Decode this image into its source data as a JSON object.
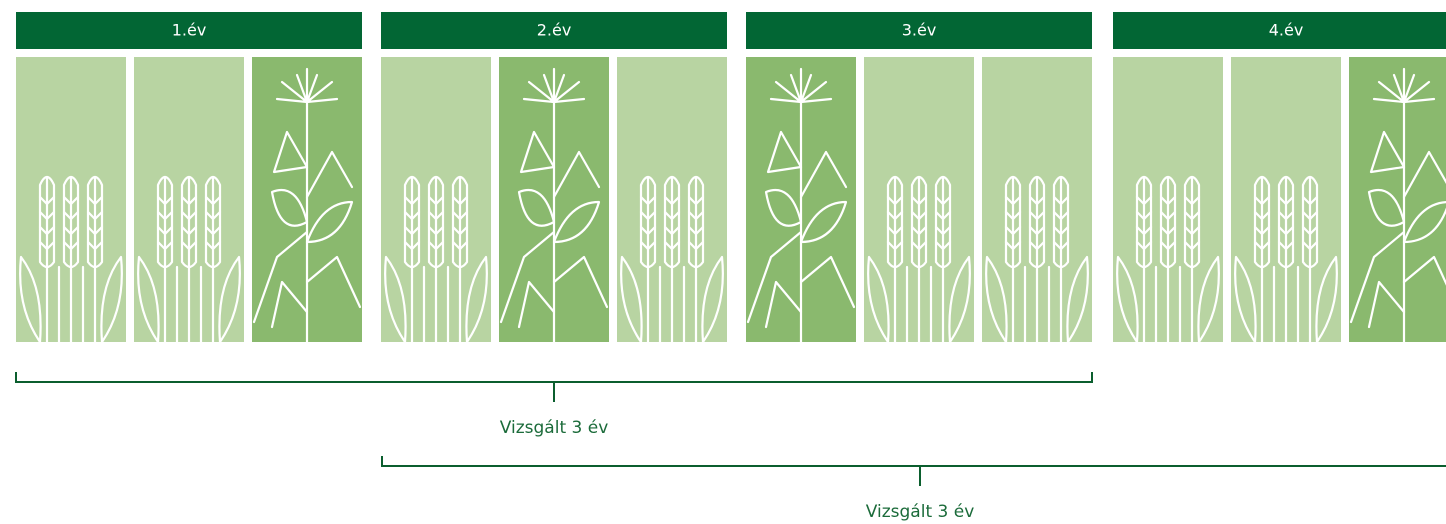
{
  "headers": [
    "1.év",
    "2.év",
    "3.év",
    "4.év"
  ],
  "brackets": [
    {
      "label": "Vizsgált 3 év"
    },
    {
      "label": "Vizsgált 3 év"
    }
  ]
}
